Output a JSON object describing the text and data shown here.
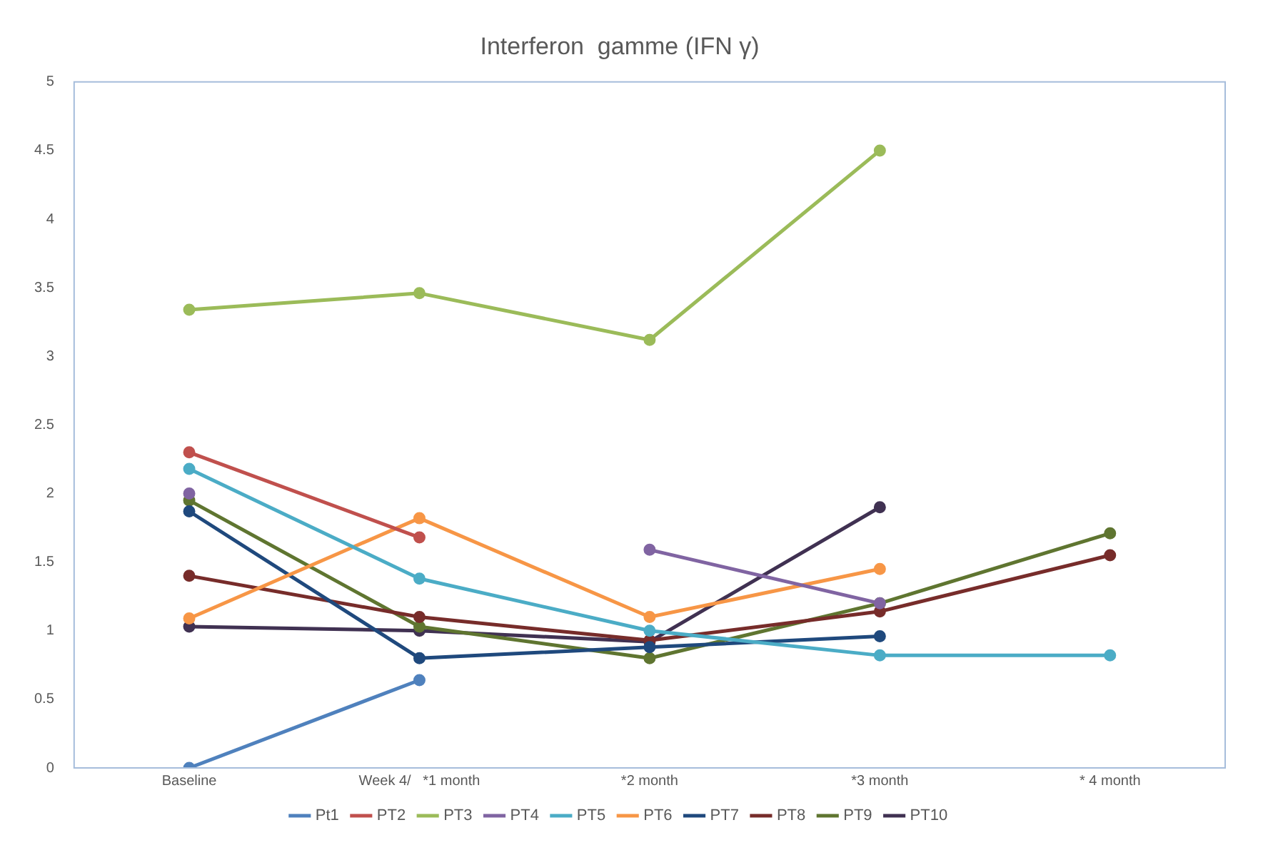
{
  "chart_data": {
    "type": "line",
    "title": "Interferon  gamme (IFN γ)",
    "categories": [
      "Baseline",
      "Week 4/   *1 month",
      "*2 month",
      "*3 month",
      "* 4 month"
    ],
    "ylim": [
      0,
      5
    ],
    "yticks": [
      0,
      0.5,
      1,
      1.5,
      2,
      2.5,
      3,
      3.5,
      4,
      4.5,
      5
    ],
    "grid": false,
    "legend": "bottom",
    "marker": "circle",
    "line_style": "solid",
    "series": [
      {
        "name": "Pt1",
        "color": "#4f81bd",
        "values": [
          0,
          0.64,
          null,
          null,
          null
        ]
      },
      {
        "name": "PT2",
        "color": "#c0504d",
        "values": [
          2.3,
          1.68,
          null,
          null,
          null
        ]
      },
      {
        "name": "PT3",
        "color": "#9bbb59",
        "values": [
          3.34,
          3.46,
          3.12,
          4.5,
          null
        ]
      },
      {
        "name": "PT4",
        "color": "#8064a2",
        "values": [
          2.0,
          null,
          1.59,
          1.2,
          null
        ]
      },
      {
        "name": "PT5",
        "color": "#4bacc6",
        "values": [
          2.18,
          1.38,
          1.0,
          0.82,
          0.82
        ]
      },
      {
        "name": "PT6",
        "color": "#f79646",
        "values": [
          1.09,
          1.82,
          1.1,
          1.45,
          null
        ]
      },
      {
        "name": "PT7",
        "color": "#1f497d",
        "values": [
          1.87,
          0.8,
          0.88,
          0.96,
          null
        ]
      },
      {
        "name": "PT8",
        "color": "#772c2a",
        "values": [
          1.4,
          1.1,
          0.93,
          1.14,
          1.55
        ]
      },
      {
        "name": "PT9",
        "color": "#5f7530",
        "values": [
          1.95,
          1.03,
          0.8,
          1.2,
          1.71
        ]
      },
      {
        "name": "PT10",
        "color": "#403152",
        "values": [
          1.03,
          1.0,
          0.92,
          1.9,
          null
        ]
      }
    ]
  }
}
